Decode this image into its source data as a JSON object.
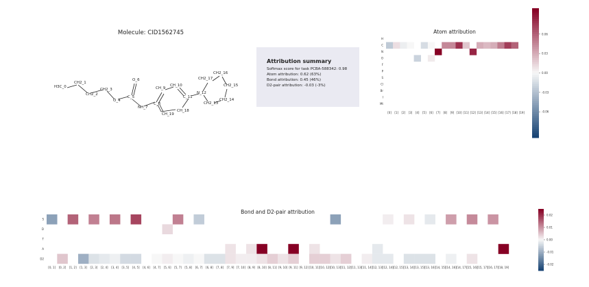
{
  "molecule": {
    "title": "Molecule: CID1562745",
    "atoms": [
      {
        "label": "H3C_0"
      },
      {
        "label": "CH2_1"
      },
      {
        "label": "CH2_2"
      },
      {
        "label": "CH2_3"
      },
      {
        "label": "O_4"
      },
      {
        "label": "C_5"
      },
      {
        "label": "O_6"
      },
      {
        "label": "NH_7"
      },
      {
        "label": "C_8"
      },
      {
        "label": "CH_9"
      },
      {
        "label": "CH_10"
      },
      {
        "label": "C_11"
      },
      {
        "label": "N_12"
      },
      {
        "label": "CH2_13"
      },
      {
        "label": "CH2_14"
      },
      {
        "label": "CH2_15"
      },
      {
        "label": "CH2_16"
      },
      {
        "label": "CH2_17"
      },
      {
        "label": "CH_18"
      },
      {
        "label": "CH_19"
      }
    ]
  },
  "summary": {
    "title": "Attribution summary",
    "lines": [
      "Softmax score for task  PCBA-588342: 0.98",
      "Atom attribution: 0.62 (63%)",
      "Bond attribution: 0.45 (46%)",
      "D2-pair attribution: -0.03 (-3%)"
    ]
  },
  "chart_data": [
    {
      "type": "heatmap",
      "title": "Atom attribution",
      "rows": [
        "H",
        "C",
        "N",
        "O",
        "F",
        "P",
        "S",
        "Cl",
        "Br",
        "I",
        "Mt"
      ],
      "columns": [
        "[0]",
        "[1]",
        "[2]",
        "[3]",
        "[4]",
        "[5]",
        "[6]",
        "[7]",
        "[8]",
        "[9]",
        "[10]",
        "[11]",
        "[12]",
        "[13]",
        "[14]",
        "[15]",
        "[16]",
        "[17]",
        "[18]",
        "[19]"
      ],
      "values": [
        [
          null,
          null,
          null,
          null,
          null,
          null,
          null,
          null,
          null,
          null,
          null,
          null,
          null,
          null,
          null,
          null,
          null,
          null,
          null,
          null
        ],
        [
          -0.025,
          0.01,
          -0.005,
          0.0,
          null,
          -0.015,
          0.0,
          null,
          0.045,
          0.045,
          0.08,
          0.02,
          null,
          0.03,
          0.025,
          0.03,
          0.05,
          0.075,
          0.06,
          null
        ],
        [
          null,
          null,
          null,
          null,
          null,
          null,
          null,
          0.1,
          null,
          null,
          null,
          null,
          0.085,
          null,
          null,
          null,
          null,
          null,
          null,
          null
        ],
        [
          null,
          null,
          null,
          null,
          -0.02,
          null,
          0.005,
          null,
          null,
          null,
          null,
          null,
          null,
          null,
          null,
          null,
          null,
          null,
          null,
          null
        ],
        [
          null,
          null,
          null,
          null,
          null,
          null,
          null,
          null,
          null,
          null,
          null,
          null,
          null,
          null,
          null,
          null,
          null,
          null,
          null,
          null
        ],
        [
          null,
          null,
          null,
          null,
          null,
          null,
          null,
          null,
          null,
          null,
          null,
          null,
          null,
          null,
          null,
          null,
          null,
          null,
          null,
          null
        ],
        [
          null,
          null,
          null,
          null,
          null,
          null,
          null,
          null,
          null,
          null,
          null,
          null,
          null,
          null,
          null,
          null,
          null,
          null,
          null,
          null
        ],
        [
          null,
          null,
          null,
          null,
          null,
          null,
          null,
          null,
          null,
          null,
          null,
          null,
          null,
          null,
          null,
          null,
          null,
          null,
          null,
          null
        ],
        [
          null,
          null,
          null,
          null,
          null,
          null,
          null,
          null,
          null,
          null,
          null,
          null,
          null,
          null,
          null,
          null,
          null,
          null,
          null,
          null
        ],
        [
          null,
          null,
          null,
          null,
          null,
          null,
          null,
          null,
          null,
          null,
          null,
          null,
          null,
          null,
          null,
          null,
          null,
          null,
          null,
          null
        ],
        [
          null,
          null,
          null,
          null,
          null,
          null,
          null,
          null,
          null,
          null,
          null,
          null,
          null,
          null,
          null,
          null,
          null,
          null,
          null,
          null
        ]
      ],
      "colorbar": {
        "range": [
          -0.1,
          0.1
        ],
        "ticks": [
          0.06,
          0.03,
          0.0,
          -0.03,
          -0.06
        ],
        "tick_labels": [
          "0.06",
          "0.03",
          "0.00",
          "-0.03",
          "-0.06"
        ]
      }
    },
    {
      "type": "heatmap",
      "title": "Bond and D2-pair attribution",
      "rows": [
        "S",
        "D",
        "T",
        "A",
        "D2"
      ],
      "columns": [
        "[0, 1]",
        "[0, 2]",
        "[1, 2]",
        "[1, 3]",
        "[2, 3]",
        "[2, 4]",
        "[3, 4]",
        "[3, 5]",
        "[4, 5]",
        "[4, 6]",
        "[4, 7]",
        "[5, 6]",
        "[5, 7]",
        "[5, 8]",
        "[6, 7]",
        "[6, 8]",
        "[7, 8]",
        "[7, 9]",
        "[7, 10]",
        "[8, 9]",
        "[8, 10]",
        "[8, 11]",
        "[9, 10]",
        "[9, 11]",
        "[9, 12]",
        "[10, 11]",
        "[10, 12]",
        "[10, 13]",
        "[11, 12]",
        "[11, 13]",
        "[11, 14]",
        "[12, 13]",
        "[12, 14]",
        "[12, 15]",
        "[13, 14]",
        "[13, 15]",
        "[13, 16]",
        "[14, 15]",
        "[14, 16]",
        "[14, 17]",
        "[15, 16]",
        "[15, 17]",
        "[16, 17]",
        "[18, 19]"
      ],
      "values": [
        [
          -0.012,
          null,
          0.015,
          null,
          0.012,
          null,
          0.013,
          null,
          0.018,
          null,
          null,
          null,
          0.012,
          null,
          -0.006,
          null,
          null,
          null,
          null,
          null,
          null,
          null,
          null,
          null,
          null,
          null,
          null,
          -0.012,
          null,
          null,
          null,
          null,
          0.001,
          null,
          0.002,
          null,
          -0.002,
          null,
          0.009,
          null,
          0.011,
          null,
          0.01,
          null
        ],
        [
          null,
          null,
          null,
          null,
          null,
          null,
          null,
          null,
          null,
          null,
          null,
          0.003,
          null,
          null,
          null,
          null,
          null,
          null,
          null,
          null,
          null,
          null,
          null,
          null,
          null,
          null,
          null,
          null,
          null,
          null,
          null,
          null,
          null,
          null,
          null,
          null,
          null,
          null,
          null,
          null,
          null,
          null,
          null,
          null
        ],
        [
          null,
          null,
          null,
          null,
          null,
          null,
          null,
          null,
          null,
          null,
          null,
          null,
          null,
          null,
          null,
          null,
          null,
          null,
          null,
          null,
          null,
          null,
          null,
          null,
          null,
          null,
          null,
          null,
          null,
          null,
          null,
          null,
          null,
          null,
          null,
          null,
          null,
          null,
          null,
          null,
          null,
          null,
          null,
          null
        ],
        [
          null,
          null,
          null,
          null,
          null,
          null,
          null,
          null,
          null,
          null,
          null,
          null,
          null,
          null,
          null,
          null,
          null,
          0.002,
          null,
          0.002,
          0.03,
          null,
          null,
          0.028,
          null,
          0.002,
          null,
          null,
          null,
          null,
          null,
          -0.002,
          null,
          null,
          null,
          null,
          null,
          null,
          null,
          null,
          null,
          null,
          null,
          0.028
        ],
        [
          null,
          0.005,
          null,
          -0.01,
          -0.003,
          -0.002,
          -0.001,
          -0.004,
          -0.004,
          null,
          0.0,
          0.001,
          0.0,
          -0.001,
          0.0,
          -0.003,
          -0.003,
          0.002,
          0.001,
          0.001,
          0.002,
          0.004,
          0.002,
          0.004,
          null,
          0.004,
          0.004,
          0.002,
          0.004,
          null,
          0.001,
          -0.002,
          -0.002,
          null,
          -0.003,
          -0.003,
          -0.003,
          null,
          -0.001,
          null,
          0.002,
          null,
          null,
          null
        ]
      ],
      "colorbar": {
        "range": [
          -0.025,
          0.025
        ],
        "ticks": [
          0.02,
          0.01,
          0.0,
          -0.01,
          -0.02
        ],
        "tick_labels": [
          "0.02",
          "0.01",
          "0.00",
          "-0.01",
          "-0.02"
        ]
      }
    }
  ]
}
